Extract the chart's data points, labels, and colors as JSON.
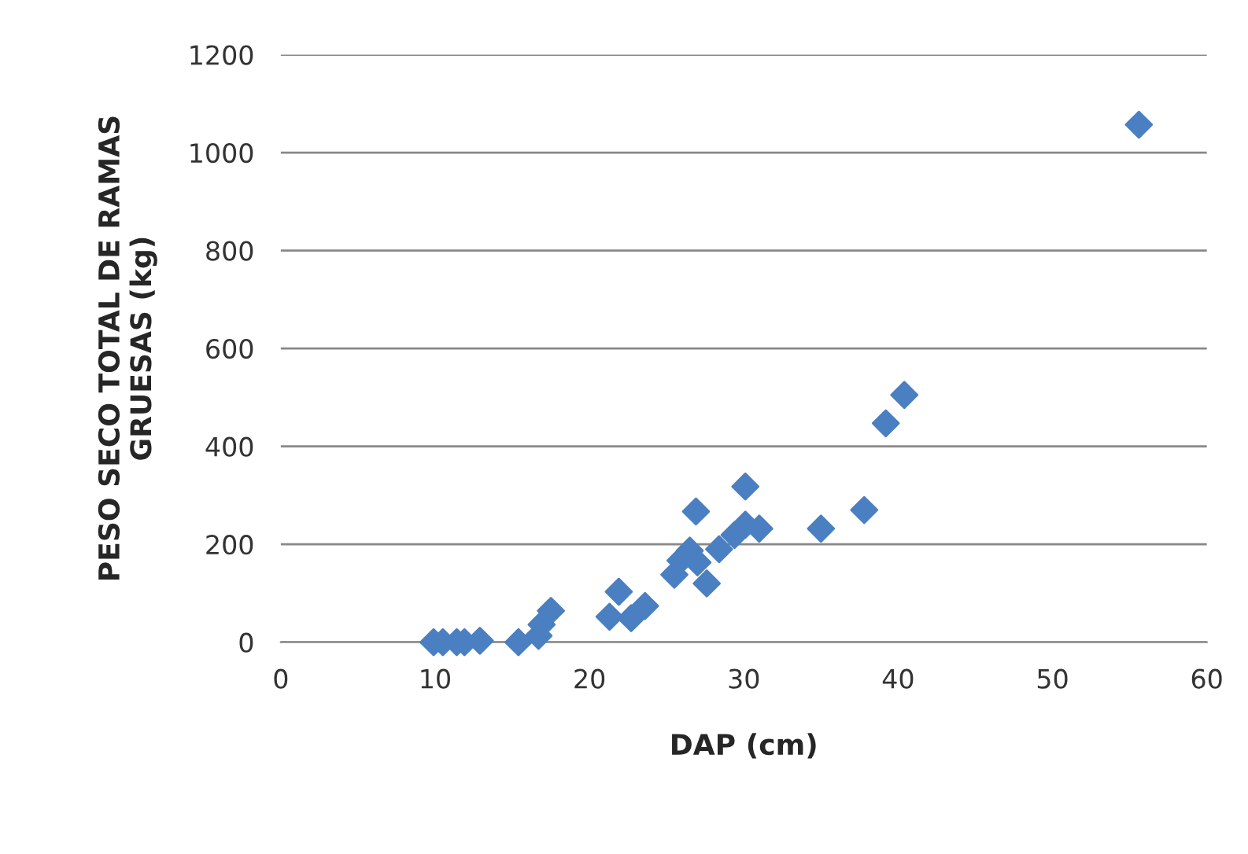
{
  "chart_data": {
    "type": "scatter",
    "xlabel": "DAP (cm)",
    "ylabel": "PESO SECO TOTAL DE RAMAS\nGRUESAS (kg)",
    "xlim": [
      0,
      60
    ],
    "xticks": [
      0,
      10,
      20,
      30,
      40,
      50,
      60
    ],
    "ylim": [
      0,
      1200
    ],
    "yticks": [
      0,
      200,
      400,
      600,
      800,
      1000,
      1200
    ],
    "grid": "y",
    "marker": "diamond",
    "series": [
      {
        "color": "#4a7fc1",
        "x": [
          9.9,
          10.5,
          11.4,
          11.9,
          12.9,
          15.4,
          16.7,
          16.9,
          17.5,
          21.3,
          21.9,
          22.7,
          23.6,
          25.5,
          25.9,
          26.5,
          27.0,
          26.9,
          27.6,
          28.4,
          29.4,
          30.1,
          30.1,
          31.0,
          35.0,
          37.8,
          39.2,
          40.4,
          55.6
        ],
        "values": [
          0,
          0,
          0,
          0,
          3,
          0,
          13,
          36,
          64,
          52,
          103,
          49,
          74,
          138,
          167,
          187,
          163,
          267,
          120,
          190,
          219,
          240,
          318,
          232,
          232,
          270,
          447,
          505,
          1057
        ]
      }
    ]
  }
}
